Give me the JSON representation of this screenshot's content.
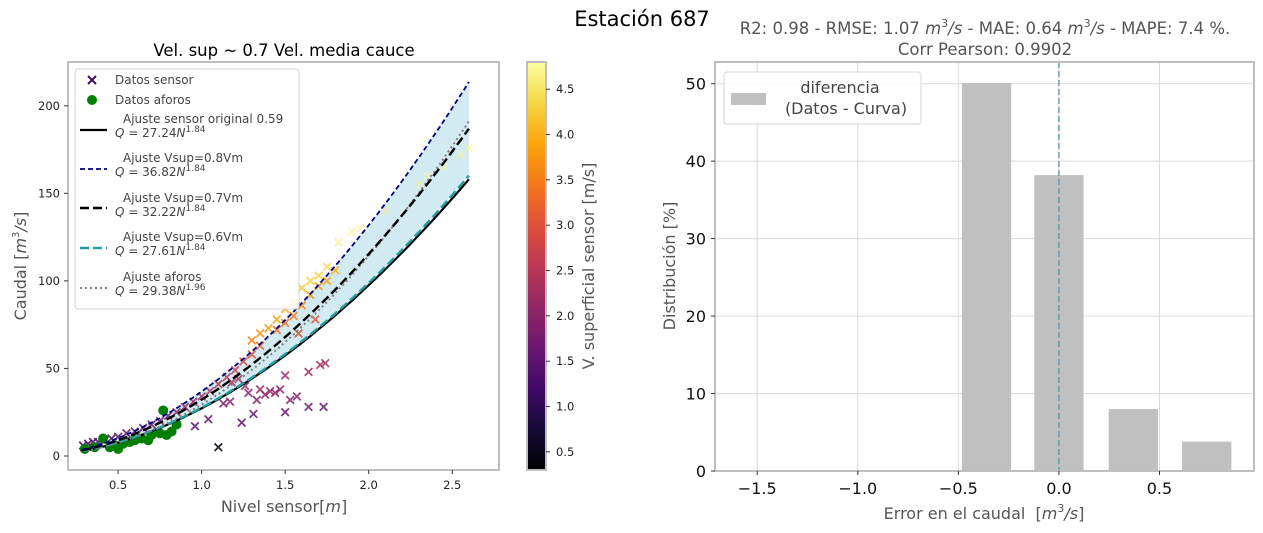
{
  "suptitle": "Estación 687",
  "chart_data": [
    {
      "type": "scatter",
      "title": "Vel. sup ~ 0.7 Vel. media cauce",
      "xlabel": "Nivel sensor",
      "xlabel_unit": "m",
      "ylabel": "Caudal",
      "ylabel_unit": "m",
      "ylabel_unit_exp": "3",
      "ylabel_unit_tail": "/s",
      "xlim": [
        0.2,
        2.78
      ],
      "ylim": [
        -8,
        225
      ],
      "xticks": [
        "0.5",
        "1.0",
        "1.5",
        "2.0",
        "2.5"
      ],
      "xtick_values": [
        0.5,
        1.0,
        1.5,
        2.0,
        2.5
      ],
      "yticks": [
        "0",
        "50",
        "100",
        "150",
        "200"
      ],
      "ytick_values": [
        0,
        50,
        100,
        150,
        200
      ],
      "grid": false,
      "legend_placement": "upper-left",
      "legend": [
        {
          "label": "Datos sensor",
          "marker": "x",
          "color": "#3b0f6f"
        },
        {
          "label": "Datos aforos",
          "marker": "o",
          "color": "#007f00"
        },
        {
          "label": "Ajuste sensor original 0.59",
          "eq_coef": "27.24",
          "eq_exp": "1.84",
          "style": "solid",
          "color": "#000000"
        },
        {
          "label": "Ajuste Vsup=0.8Vm",
          "eq_coef": "36.82",
          "eq_exp": "1.84",
          "style": "dashed-fine",
          "color": "#00007f"
        },
        {
          "label": "Ajuste Vsup=0.7Vm",
          "eq_coef": "32.22",
          "eq_exp": "1.84",
          "style": "dashed",
          "color": "#000000"
        },
        {
          "label": "Ajuste Vsup=0.6Vm",
          "eq_coef": "27.61",
          "eq_exp": "1.84",
          "style": "dashed",
          "color": "#20a0a0"
        },
        {
          "label": "Ajuste aforos",
          "eq_coef": "29.38",
          "eq_exp": "1.96",
          "style": "dotted",
          "color": "#808080"
        }
      ],
      "curves": [
        {
          "name": "Ajuste sensor original 0.59",
          "a": 27.24,
          "b": 1.84,
          "x_range": [
            0.28,
            2.6
          ]
        },
        {
          "name": "Ajuste Vsup=0.8Vm",
          "a": 36.82,
          "b": 1.84,
          "x_range": [
            0.28,
            2.6
          ]
        },
        {
          "name": "Ajuste Vsup=0.7Vm",
          "a": 32.22,
          "b": 1.84,
          "x_range": [
            0.28,
            2.6
          ]
        },
        {
          "name": "Ajuste Vsup=0.6Vm",
          "a": 27.61,
          "b": 1.84,
          "x_range": [
            0.28,
            2.6
          ]
        },
        {
          "name": "Ajuste aforos",
          "a": 29.38,
          "b": 1.96,
          "x_range": [
            0.28,
            2.6
          ]
        }
      ],
      "fill_between": {
        "lower": "Ajuste Vsup=0.6Vm",
        "upper": "Ajuste Vsup=0.8Vm",
        "color": "#add8e6"
      },
      "sensor_points": [
        {
          "x": 0.29,
          "y": 6,
          "v": 1.2
        },
        {
          "x": 0.32,
          "y": 7,
          "v": 1.2
        },
        {
          "x": 0.35,
          "y": 8,
          "v": 1.3
        },
        {
          "x": 0.38,
          "y": 8,
          "v": 1.3
        },
        {
          "x": 0.42,
          "y": 9,
          "v": 1.4
        },
        {
          "x": 0.46,
          "y": 10,
          "v": 1.4
        },
        {
          "x": 0.5,
          "y": 11,
          "v": 1.5
        },
        {
          "x": 0.55,
          "y": 13,
          "v": 1.6
        },
        {
          "x": 0.6,
          "y": 14,
          "v": 1.7
        },
        {
          "x": 0.65,
          "y": 16,
          "v": 1.7
        },
        {
          "x": 0.7,
          "y": 18,
          "v": 1.8
        },
        {
          "x": 0.75,
          "y": 20,
          "v": 1.9
        },
        {
          "x": 0.8,
          "y": 23,
          "v": 2.0
        },
        {
          "x": 0.85,
          "y": 25,
          "v": 2.0
        },
        {
          "x": 0.9,
          "y": 28,
          "v": 2.1
        },
        {
          "x": 0.95,
          "y": 31,
          "v": 2.2
        },
        {
          "x": 1.0,
          "y": 34,
          "v": 2.3
        },
        {
          "x": 1.05,
          "y": 37,
          "v": 2.4
        },
        {
          "x": 1.1,
          "y": 41,
          "v": 2.5
        },
        {
          "x": 1.15,
          "y": 45,
          "v": 2.6
        },
        {
          "x": 1.2,
          "y": 49,
          "v": 2.7
        },
        {
          "x": 1.25,
          "y": 54,
          "v": 2.9
        },
        {
          "x": 1.3,
          "y": 58,
          "v": 3.0
        },
        {
          "x": 1.35,
          "y": 63,
          "v": 3.2
        },
        {
          "x": 1.3,
          "y": 66,
          "v": 3.6
        },
        {
          "x": 1.35,
          "y": 70,
          "v": 3.7
        },
        {
          "x": 1.4,
          "y": 73,
          "v": 3.8
        },
        {
          "x": 1.45,
          "y": 78,
          "v": 3.9
        },
        {
          "x": 1.5,
          "y": 84,
          "v": 4.0
        },
        {
          "x": 1.55,
          "y": 88,
          "v": 4.1
        },
        {
          "x": 1.6,
          "y": 96,
          "v": 4.2
        },
        {
          "x": 1.65,
          "y": 100,
          "v": 4.3
        },
        {
          "x": 1.7,
          "y": 103,
          "v": 4.3
        },
        {
          "x": 1.75,
          "y": 108,
          "v": 4.4
        },
        {
          "x": 1.82,
          "y": 122,
          "v": 4.5
        },
        {
          "x": 1.45,
          "y": 72,
          "v": 3.3
        },
        {
          "x": 1.5,
          "y": 76,
          "v": 3.4
        },
        {
          "x": 1.55,
          "y": 80,
          "v": 3.5
        },
        {
          "x": 1.6,
          "y": 86,
          "v": 3.6
        },
        {
          "x": 1.65,
          "y": 92,
          "v": 3.7
        },
        {
          "x": 1.7,
          "y": 97,
          "v": 3.8
        },
        {
          "x": 1.75,
          "y": 100,
          "v": 3.9
        },
        {
          "x": 1.8,
          "y": 106,
          "v": 4.0
        },
        {
          "x": 1.58,
          "y": 70,
          "v": 3.0
        },
        {
          "x": 1.68,
          "y": 78,
          "v": 3.1
        },
        {
          "x": 1.9,
          "y": 128,
          "v": 4.6
        },
        {
          "x": 1.95,
          "y": 130,
          "v": 4.6
        },
        {
          "x": 2.1,
          "y": 140,
          "v": 4.6
        },
        {
          "x": 2.3,
          "y": 155,
          "v": 4.6
        },
        {
          "x": 2.45,
          "y": 165,
          "v": 4.7
        },
        {
          "x": 2.55,
          "y": 172,
          "v": 4.7
        },
        {
          "x": 2.6,
          "y": 176,
          "v": 4.7
        },
        {
          "x": 2.35,
          "y": 160,
          "v": 4.7
        },
        {
          "x": 0.96,
          "y": 17,
          "v": 1.4
        },
        {
          "x": 1.04,
          "y": 21,
          "v": 1.6
        },
        {
          "x": 1.13,
          "y": 30,
          "v": 1.9
        },
        {
          "x": 1.17,
          "y": 31,
          "v": 2.0
        },
        {
          "x": 1.24,
          "y": 19,
          "v": 1.5
        },
        {
          "x": 1.28,
          "y": 36,
          "v": 2.0
        },
        {
          "x": 1.31,
          "y": 24,
          "v": 1.6
        },
        {
          "x": 1.33,
          "y": 32,
          "v": 1.9
        },
        {
          "x": 1.35,
          "y": 38,
          "v": 2.1
        },
        {
          "x": 1.38,
          "y": 35,
          "v": 2.0
        },
        {
          "x": 1.41,
          "y": 37,
          "v": 2.1
        },
        {
          "x": 1.44,
          "y": 36,
          "v": 2.0
        },
        {
          "x": 1.47,
          "y": 38,
          "v": 2.1
        },
        {
          "x": 1.5,
          "y": 25,
          "v": 1.6
        },
        {
          "x": 1.5,
          "y": 46,
          "v": 2.2
        },
        {
          "x": 1.53,
          "y": 32,
          "v": 1.9
        },
        {
          "x": 1.57,
          "y": 34,
          "v": 1.9
        },
        {
          "x": 1.64,
          "y": 28,
          "v": 1.7
        },
        {
          "x": 1.64,
          "y": 48,
          "v": 2.2
        },
        {
          "x": 1.71,
          "y": 52,
          "v": 2.3
        },
        {
          "x": 1.74,
          "y": 53,
          "v": 2.3
        },
        {
          "x": 1.73,
          "y": 28,
          "v": 1.6
        },
        {
          "x": 1.1,
          "y": 5,
          "v": 0.4
        },
        {
          "x": 1.22,
          "y": 44,
          "v": 2.3
        },
        {
          "x": 1.26,
          "y": 40,
          "v": 2.2
        },
        {
          "x": 1.18,
          "y": 42,
          "v": 2.4
        }
      ],
      "aforo_points": [
        {
          "x": 0.3,
          "y": 4
        },
        {
          "x": 0.36,
          "y": 5
        },
        {
          "x": 0.41,
          "y": 10
        },
        {
          "x": 0.45,
          "y": 5
        },
        {
          "x": 0.48,
          "y": 6
        },
        {
          "x": 0.5,
          "y": 4
        },
        {
          "x": 0.53,
          "y": 7
        },
        {
          "x": 0.57,
          "y": 8
        },
        {
          "x": 0.6,
          "y": 9
        },
        {
          "x": 0.64,
          "y": 10
        },
        {
          "x": 0.68,
          "y": 9
        },
        {
          "x": 0.7,
          "y": 12
        },
        {
          "x": 0.75,
          "y": 13
        },
        {
          "x": 0.77,
          "y": 26
        },
        {
          "x": 0.79,
          "y": 12
        },
        {
          "x": 0.82,
          "y": 14
        },
        {
          "x": 0.85,
          "y": 18
        }
      ]
    },
    {
      "type": "bar",
      "title_line1_prefix": "R2: 0.98 - RMSE: 1.07 ",
      "title_line1_mid": " - MAE: 0.64 ",
      "title_line1_suffix": " - MAPE: 7.4 %.",
      "title_unit": "m",
      "title_unit_exp": "3",
      "title_unit_tail": "/s",
      "title_line2": "Corr Pearson: 0.9902",
      "xlabel": "Error en el caudal  ",
      "xlabel_unit": "m",
      "xlabel_unit_exp": "3",
      "xlabel_unit_tail": "/s",
      "ylabel": "Distribución [%]",
      "xlim": [
        -1.71,
        0.97
      ],
      "ylim": [
        0,
        52.8
      ],
      "xticks": [
        "−1.5",
        "−1.0",
        "−0.5",
        "0.0",
        "0.5"
      ],
      "xtick_values": [
        -1.5,
        -1.0,
        -0.5,
        0.0,
        0.5
      ],
      "yticks": [
        "0",
        "10",
        "20",
        "30",
        "40",
        "50"
      ],
      "ytick_values": [
        0,
        10,
        20,
        30,
        40,
        50
      ],
      "grid": true,
      "legend_placement": "upper-left",
      "legend": [
        {
          "label_line1": "diferencia",
          "label_line2": "(Datos - Curva)",
          "color": "#c0c0c0"
        }
      ],
      "bar_width": 0.245,
      "categories": [
        -0.36,
        0.0,
        0.37,
        0.735
      ],
      "values": [
        50.1,
        38.2,
        8.0,
        3.8
      ],
      "vline": {
        "x": 0.0,
        "color": "#6a9ab0",
        "style": "dashed"
      }
    }
  ],
  "colorbar": {
    "label": "V. superficial sensor [m/s]",
    "range": [
      0.3,
      4.8
    ],
    "ticks": [
      "0.5",
      "1.0",
      "1.5",
      "2.0",
      "2.5",
      "3.0",
      "3.5",
      "4.0",
      "4.5"
    ],
    "tick_values": [
      0.5,
      1.0,
      1.5,
      2.0,
      2.5,
      3.0,
      3.5,
      4.0,
      4.5
    ],
    "colormap": "inferno"
  },
  "colors": {
    "frame": "#bfbfbf",
    "band": "#add8e6",
    "bar": "#c0c0c0",
    "grid": "#d9d9d9"
  }
}
